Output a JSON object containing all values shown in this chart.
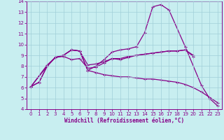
{
  "title": "",
  "xlabel": "Windchill (Refroidissement éolien,°C)",
  "ylabel": "",
  "xlim": [
    -0.5,
    23.5
  ],
  "ylim": [
    4,
    14
  ],
  "xticks": [
    0,
    1,
    2,
    3,
    4,
    5,
    6,
    7,
    8,
    9,
    10,
    11,
    12,
    13,
    14,
    15,
    16,
    17,
    18,
    19,
    20,
    21,
    22,
    23
  ],
  "yticks": [
    4,
    5,
    6,
    7,
    8,
    9,
    10,
    11,
    12,
    13,
    14
  ],
  "bg_color": "#c8eef0",
  "grid_color": "#a0cfd8",
  "line_color": "#880088",
  "line1_x": [
    0,
    1,
    2,
    3,
    4,
    5,
    6,
    7,
    8,
    9,
    10,
    11,
    12,
    13,
    14,
    15,
    16,
    17,
    19,
    21,
    22,
    23
  ],
  "line1_y": [
    6.1,
    6.5,
    8.0,
    8.8,
    9.0,
    9.5,
    9.4,
    7.6,
    8.0,
    8.6,
    9.3,
    9.5,
    9.6,
    9.8,
    11.1,
    13.5,
    13.7,
    13.2,
    9.8,
    6.2,
    5.0,
    4.3
  ],
  "line2_x": [
    0,
    2,
    3,
    4,
    5,
    6,
    7,
    8,
    9,
    10,
    11,
    12,
    13,
    14,
    15,
    16,
    17,
    18,
    19,
    20
  ],
  "line2_y": [
    6.1,
    8.0,
    8.8,
    8.9,
    8.6,
    8.7,
    7.8,
    7.9,
    8.3,
    8.7,
    8.6,
    8.8,
    9.0,
    9.1,
    9.2,
    9.3,
    9.4,
    9.4,
    9.5,
    8.9
  ],
  "line3_x": [
    0,
    1,
    2,
    3,
    4,
    5,
    6,
    7,
    8,
    9,
    10,
    11,
    12,
    13,
    14,
    15,
    16,
    17,
    18,
    19,
    20,
    21,
    22,
    23
  ],
  "line3_y": [
    6.1,
    6.5,
    8.0,
    8.8,
    9.0,
    9.5,
    9.4,
    7.6,
    7.4,
    7.2,
    7.1,
    7.0,
    7.0,
    6.9,
    6.8,
    6.8,
    6.7,
    6.6,
    6.5,
    6.3,
    6.0,
    5.6,
    5.1,
    4.6
  ],
  "line4_x": [
    0,
    2,
    3,
    4,
    5,
    6,
    7,
    8,
    9,
    10,
    11,
    12,
    13,
    14,
    15,
    16,
    17,
    18,
    19,
    20
  ],
  "line4_y": [
    6.1,
    8.1,
    8.8,
    9.0,
    9.5,
    9.4,
    8.1,
    8.2,
    8.4,
    8.7,
    8.7,
    8.9,
    9.0,
    9.1,
    9.2,
    9.3,
    9.4,
    9.4,
    9.5,
    9.0
  ]
}
